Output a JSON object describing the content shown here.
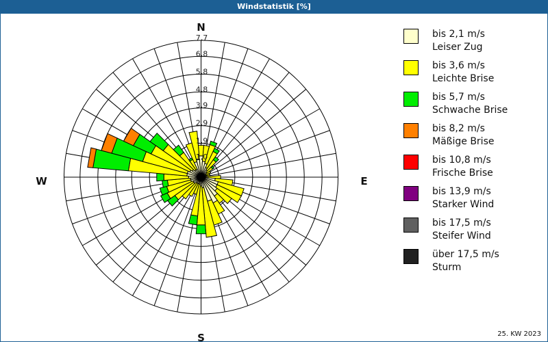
{
  "header": {
    "title": "Windstatistik [%]"
  },
  "footer": {
    "period": "25. KW 2023"
  },
  "compass": {
    "N": "N",
    "E": "E",
    "S": "S",
    "W": "W"
  },
  "rings": [
    "1,0",
    "1,9",
    "2,9",
    "3,9",
    "4,8",
    "5,8",
    "6,8",
    "7,7"
  ],
  "legend": [
    {
      "line1": "bis 2,1 m/s",
      "line2": "Leiser Zug",
      "color": "#ffffcc"
    },
    {
      "line1": "bis 3,6 m/s",
      "line2": "Leichte Brise",
      "color": "#ffff00"
    },
    {
      "line1": "bis 5,7 m/s",
      "line2": "Schwache Brise",
      "color": "#00ee00"
    },
    {
      "line1": "bis 8,2 m/s",
      "line2": "Mäßige Brise",
      "color": "#ff8000"
    },
    {
      "line1": "bis 10,8 m/s",
      "line2": "Frische Brise",
      "color": "#ff0000"
    },
    {
      "line1": "bis 13,9 m/s",
      "line2": "Starker Wind",
      "color": "#800080"
    },
    {
      "line1": "bis 17,5 m/s",
      "line2": "Steifer Wind",
      "color": "#606060"
    },
    {
      "line1": "über 17,5 m/s",
      "line2": "Sturm",
      "color": "#202020"
    }
  ],
  "chart_data": {
    "type": "wind_rose",
    "title": "Windstatistik [%]",
    "unit": "%",
    "rmax": 7.7,
    "ring_values": [
      1.0,
      1.9,
      2.9,
      3.9,
      4.8,
      5.8,
      6.8,
      7.7
    ],
    "directions_deg": [
      0,
      10,
      20,
      30,
      40,
      50,
      60,
      70,
      80,
      90,
      100,
      110,
      120,
      130,
      140,
      150,
      160,
      170,
      180,
      190,
      200,
      210,
      220,
      230,
      240,
      250,
      260,
      270,
      280,
      290,
      300,
      310,
      320,
      330,
      340,
      350
    ],
    "series": [
      {
        "name": "bis 2,1 m/s",
        "values": [
          1.2,
          0.9,
          0.8,
          0.6,
          0.5,
          0.4,
          0.3,
          0.3,
          0.3,
          0.4,
          0.8,
          1.0,
          1.0,
          1.1,
          1.3,
          1.6,
          1.4,
          0.6,
          0.5,
          0.4,
          0.4,
          0.4,
          0.4,
          0.5,
          0.5,
          0.6,
          0.6,
          0.7,
          0.8,
          0.8,
          0.7,
          0.6,
          0.5,
          0.5,
          0.9,
          1.0
        ]
      },
      {
        "name": "bis 3,6 m/s",
        "values": [
          0.6,
          0.9,
          1.1,
          1.0,
          0.7,
          0.4,
          0.3,
          0.2,
          0.2,
          0.7,
          1.0,
          1.5,
          1.5,
          1.0,
          0.5,
          0.7,
          1.4,
          2.8,
          2.2,
          1.8,
          0.6,
          0.8,
          1.1,
          1.3,
          1.6,
          1.4,
          1.3,
          1.4,
          3.3,
          2.6,
          2.4,
          2.0,
          1.2,
          0.6,
          1.1,
          1.6
        ]
      },
      {
        "name": "bis 5,7 m/s",
        "values": [
          0,
          0,
          0.2,
          0.2,
          0.2,
          0.1,
          0,
          0,
          0,
          0,
          0,
          0,
          0,
          0,
          0,
          0,
          0,
          0,
          0.5,
          0.5,
          0,
          0,
          0,
          0.5,
          0.4,
          0.4,
          0.3,
          0.4,
          2.0,
          1.8,
          1.1,
          0.9,
          0.5,
          0.1,
          0,
          0
        ]
      },
      {
        "name": "bis 8,2 m/s",
        "values": [
          0,
          0,
          0,
          0,
          0,
          0,
          0,
          0,
          0,
          0,
          0,
          0,
          0,
          0,
          0,
          0,
          0,
          0,
          0,
          0,
          0,
          0,
          0,
          0,
          0,
          0,
          0,
          0,
          0.3,
          0.6,
          0.6,
          0,
          0,
          0,
          0,
          0
        ]
      },
      {
        "name": "bis 10,8 m/s",
        "values": [
          0,
          0,
          0,
          0,
          0,
          0,
          0,
          0,
          0,
          0,
          0,
          0,
          0,
          0,
          0,
          0,
          0,
          0,
          0,
          0,
          0,
          0,
          0,
          0,
          0,
          0,
          0,
          0,
          0,
          0,
          0,
          0,
          0,
          0,
          0,
          0
        ]
      },
      {
        "name": "bis 13,9 m/s",
        "values": [
          0,
          0,
          0,
          0,
          0,
          0,
          0,
          0,
          0,
          0,
          0,
          0,
          0,
          0,
          0,
          0,
          0,
          0,
          0,
          0,
          0,
          0,
          0,
          0,
          0,
          0,
          0,
          0,
          0,
          0,
          0,
          0,
          0,
          0,
          0,
          0
        ]
      },
      {
        "name": "bis 17,5 m/s",
        "values": [
          0,
          0,
          0,
          0,
          0,
          0,
          0,
          0,
          0,
          0,
          0,
          0,
          0,
          0,
          0,
          0,
          0,
          0,
          0,
          0,
          0,
          0,
          0,
          0,
          0,
          0,
          0,
          0,
          0,
          0,
          0,
          0,
          0,
          0,
          0,
          0
        ]
      },
      {
        "name": "über 17,5 m/s",
        "values": [
          0,
          0,
          0,
          0,
          0,
          0,
          0,
          0,
          0,
          0,
          0,
          0,
          0,
          0,
          0,
          0,
          0,
          0,
          0,
          0,
          0,
          0,
          0,
          0,
          0,
          0,
          0,
          0,
          0,
          0,
          0,
          0,
          0,
          0,
          0,
          0
        ]
      }
    ],
    "legend_position": "right"
  }
}
